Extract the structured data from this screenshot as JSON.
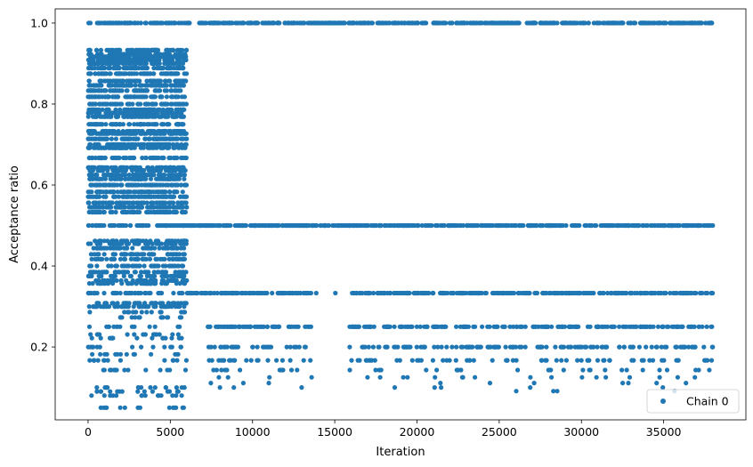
{
  "chart_data": {
    "type": "scatter",
    "xlabel": "Iteration",
    "ylabel": "Acceptance ratio",
    "xlim": [
      -2000,
      40000
    ],
    "ylim": [
      0.02,
      1.035
    ],
    "xticks": [
      0,
      5000,
      10000,
      15000,
      20000,
      25000,
      30000,
      35000
    ],
    "xtick_labels": [
      "0",
      "5000",
      "10000",
      "15000",
      "20000",
      "25000",
      "30000",
      "35000"
    ],
    "yticks": [
      0.2,
      0.4,
      0.6,
      0.8,
      1.0
    ],
    "ytick_labels": [
      "0.2",
      "0.4",
      "0.6",
      "0.8",
      "1.0"
    ],
    "grid": false,
    "legend_position": "bottom-right",
    "series": [
      {
        "name": "Chain 0",
        "color": "#1f77b4",
        "marker": "circle",
        "phases": [
          {
            "x_range": [
              0,
              6000
            ],
            "levels": [
              1.0,
              0.933,
              0.923,
              0.917,
              0.909,
              0.9,
              0.889,
              0.875,
              0.857,
              0.846,
              0.833,
              0.818,
              0.8,
              0.786,
              0.778,
              0.769,
              0.75,
              0.733,
              0.727,
              0.714,
              0.7,
              0.692,
              0.667,
              0.643,
              0.636,
              0.625,
              0.615,
              0.6,
              0.583,
              0.571,
              0.556,
              0.545,
              0.533,
              0.5,
              0.462,
              0.455,
              0.444,
              0.429,
              0.417,
              0.4,
              0.385,
              0.375,
              0.364,
              0.357,
              0.333,
              0.308,
              0.3,
              0.286,
              0.273,
              0.25,
              0.231,
              0.222,
              0.2,
              0.182,
              0.167,
              0.143,
              0.1,
              0.09,
              0.08,
              0.05
            ]
          },
          {
            "x_range": [
              6000,
              38000
            ],
            "levels": [
              1.0,
              0.5,
              0.333,
              0.25,
              0.2,
              0.167,
              0.143,
              0.125,
              0.111,
              0.1,
              0.091
            ]
          }
        ]
      }
    ]
  }
}
